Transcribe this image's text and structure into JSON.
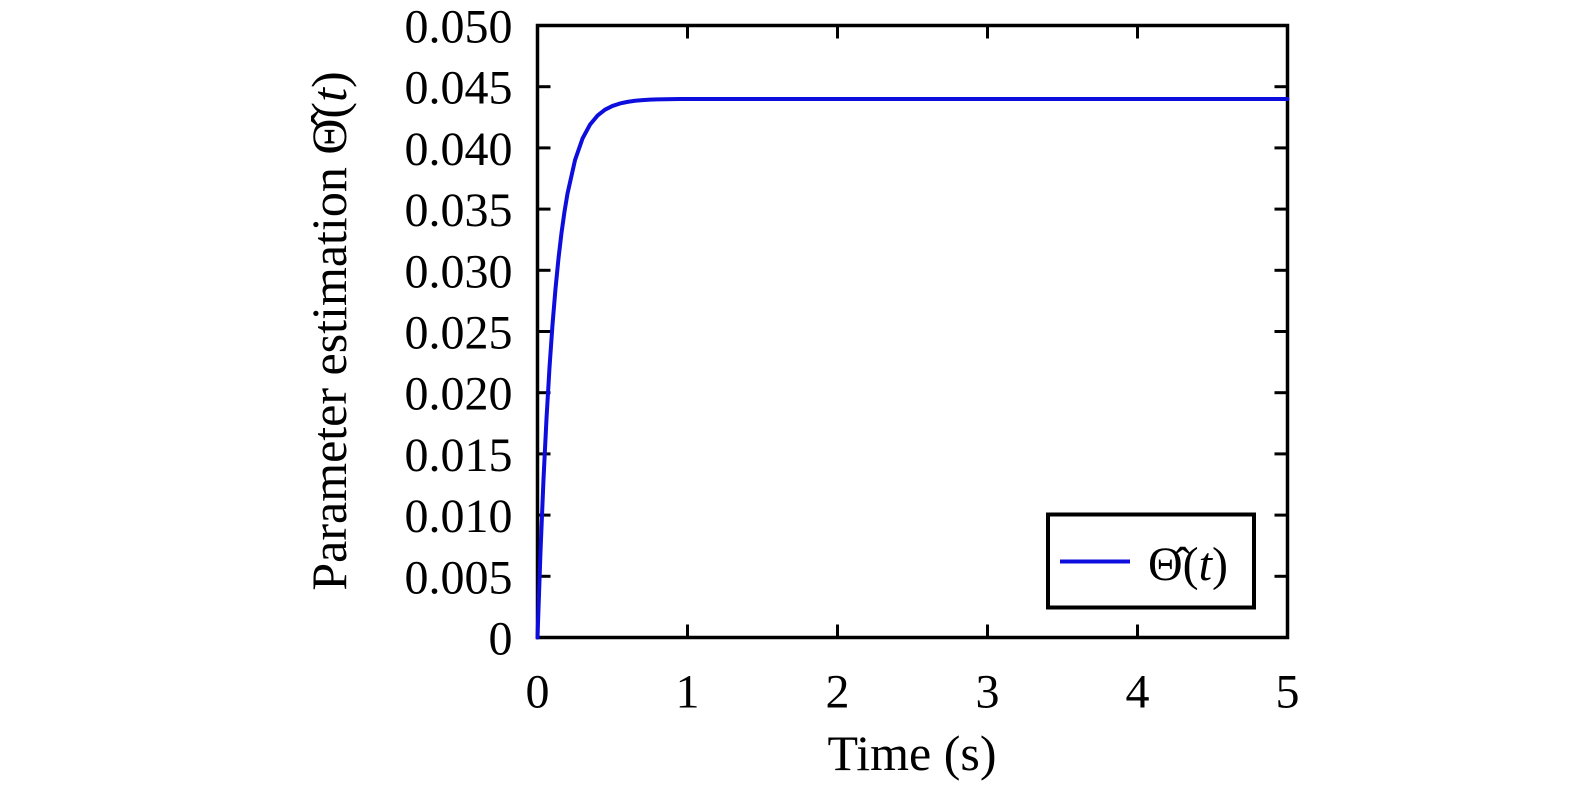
{
  "figure": {
    "background": "#ffffff"
  },
  "chart_data": {
    "type": "line",
    "title": "",
    "xlabel": "Time (s)",
    "ylabel": "Parameter estimation Θ̂(t)",
    "ylabel_parts": {
      "pre": "Parameter estimation Θ̂(",
      "var": "t",
      "post": ")"
    },
    "xlim": [
      0,
      5
    ],
    "ylim": [
      0,
      0.05
    ],
    "grid": false,
    "box": true,
    "tick_direction": "in",
    "xticks": [
      {
        "value": 0,
        "label": "0"
      },
      {
        "value": 1,
        "label": "1"
      },
      {
        "value": 2,
        "label": "2"
      },
      {
        "value": 3,
        "label": "3"
      },
      {
        "value": 4,
        "label": "4"
      },
      {
        "value": 5,
        "label": "5"
      }
    ],
    "yticks": [
      {
        "value": 0.0,
        "label": "0"
      },
      {
        "value": 0.005,
        "label": "0.005"
      },
      {
        "value": 0.01,
        "label": "0.010"
      },
      {
        "value": 0.015,
        "label": "0.015"
      },
      {
        "value": 0.02,
        "label": "0.020"
      },
      {
        "value": 0.025,
        "label": "0.025"
      },
      {
        "value": 0.03,
        "label": "0.030"
      },
      {
        "value": 0.035,
        "label": "0.035"
      },
      {
        "value": 0.04,
        "label": "0.040"
      },
      {
        "value": 0.045,
        "label": "0.045"
      },
      {
        "value": 0.05,
        "label": "0.050"
      }
    ],
    "legend": {
      "position": "lower-right-inside",
      "entries": [
        {
          "label": "Θ̂(t)",
          "label_parts": {
            "pre": "Θ̂(",
            "var": "t",
            "post": ")"
          },
          "color": "#0d0ddd"
        }
      ]
    },
    "colors": {
      "axis": "#000000",
      "curve": "#0d0ddd",
      "background": "#ffffff"
    },
    "series": [
      {
        "name": "Θ̂(t)",
        "color": "#0d0ddd",
        "model": "0.044·(1−e^(−t/0.115))",
        "steady_state": 0.044,
        "x": [
          0,
          0.02,
          0.04,
          0.06,
          0.08,
          0.1,
          0.12,
          0.14,
          0.16,
          0.18,
          0.2,
          0.25,
          0.3,
          0.35,
          0.4,
          0.45,
          0.5,
          0.55,
          0.6,
          0.65,
          0.7,
          0.75,
          0.8,
          0.85,
          0.9,
          0.95,
          1.0,
          1.2,
          1.6,
          2.0,
          2.5,
          3.0,
          3.5,
          4.0,
          4.5,
          5.0
        ],
        "y": [
          0,
          0.00702,
          0.01293,
          0.01789,
          0.02206,
          0.02556,
          0.0285,
          0.03098,
          0.03306,
          0.0348,
          0.03627,
          0.039,
          0.04076,
          0.0419,
          0.04264,
          0.04312,
          0.04343,
          0.04363,
          0.04376,
          0.04385,
          0.0439,
          0.04394,
          0.04396,
          0.04397,
          0.04398,
          0.04399,
          0.04399,
          0.044,
          0.044,
          0.044,
          0.044,
          0.044,
          0.044,
          0.044,
          0.044,
          0.044
        ]
      }
    ]
  }
}
